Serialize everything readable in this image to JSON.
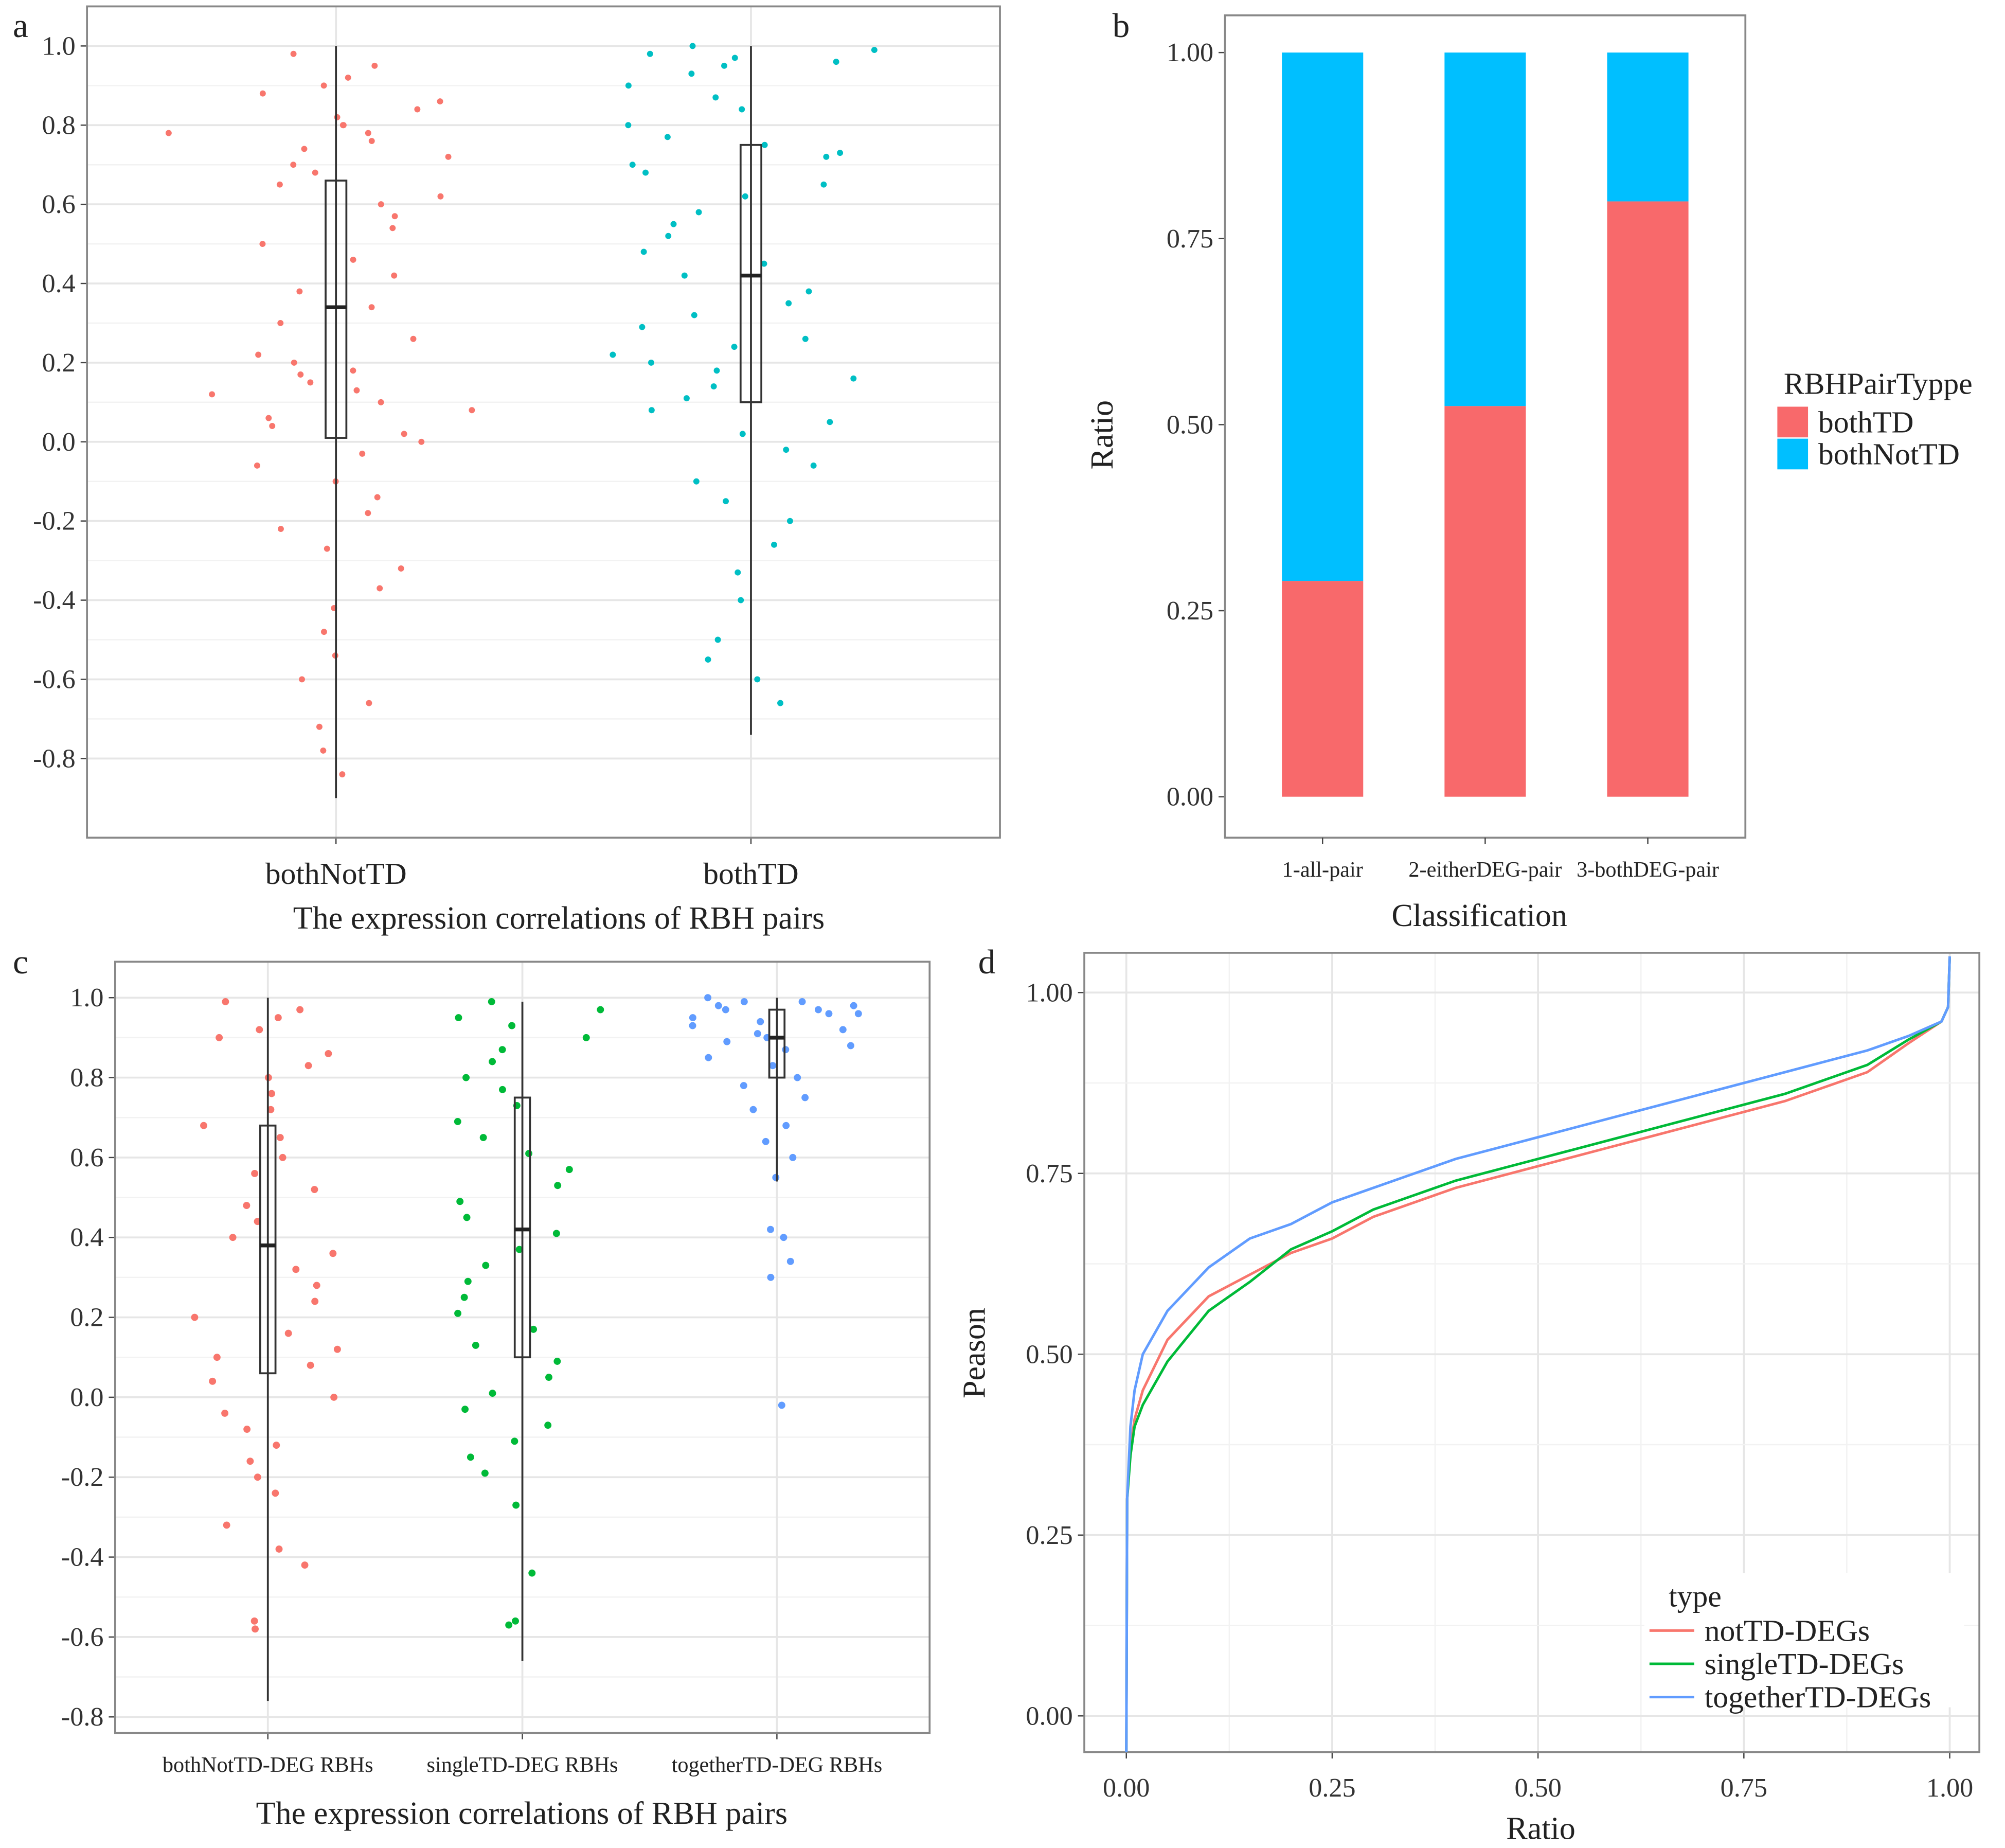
{
  "chart_data": [
    {
      "type": "swarm",
      "panel": "a",
      "xlabel": "The expression correlations of RBH pairs",
      "categories": [
        "bothNotTD",
        "bothTD"
      ],
      "colors": [
        "#F8766D",
        "#00BFC4"
      ],
      "ylim": [
        -1.0,
        1.1
      ],
      "yticks": [
        {
          "value": 1,
          "label": "1.0"
        },
        0.8,
        0.6,
        0.4,
        0.2,
        {
          "value": 0,
          "label": "0.0"
        },
        -0.2,
        -0.4,
        -0.6,
        -0.8
      ],
      "grid": true,
      "points": [
        [
          0.98,
          0.95,
          0.92,
          0.9,
          0.88,
          0.86,
          0.84,
          0.82,
          0.8,
          0.8,
          0.78,
          0.78,
          0.76,
          0.74,
          0.72,
          0.7,
          0.68,
          0.65,
          0.62,
          0.6,
          0.57,
          0.54,
          0.5,
          0.46,
          0.42,
          0.38,
          0.34,
          0.3,
          0.26,
          0.22,
          0.2,
          0.18,
          0.17,
          0.15,
          0.13,
          0.12,
          0.1,
          0.08,
          0.06,
          0.04,
          0.02,
          0.0,
          -0.03,
          -0.06,
          -0.1,
          -0.14,
          -0.18,
          -0.22,
          -0.27,
          -0.32,
          -0.37,
          -0.42,
          -0.48,
          -0.54,
          -0.6,
          -0.66,
          -0.72,
          -0.78,
          -0.84
        ],
        [
          1.0,
          0.99,
          0.98,
          0.97,
          0.96,
          0.95,
          0.93,
          0.9,
          0.87,
          0.84,
          0.8,
          0.77,
          0.75,
          0.73,
          0.72,
          0.7,
          0.68,
          0.65,
          0.62,
          0.58,
          0.55,
          0.52,
          0.48,
          0.45,
          0.42,
          0.38,
          0.35,
          0.32,
          0.29,
          0.26,
          0.24,
          0.22,
          0.2,
          0.18,
          0.16,
          0.14,
          0.11,
          0.08,
          0.05,
          0.02,
          -0.02,
          -0.06,
          -0.1,
          -0.15,
          -0.2,
          -0.26,
          -0.33,
          -0.4,
          -0.5,
          -0.55,
          -0.6,
          -0.66
        ]
      ],
      "boxes": [
        {
          "min": -0.9,
          "q1": 0.01,
          "median": 0.34,
          "q3": 0.66,
          "max": 1.0
        },
        {
          "min": -0.74,
          "q1": 0.1,
          "median": 0.42,
          "q3": 0.75,
          "max": 1.0
        }
      ]
    },
    {
      "type": "bar",
      "panel": "b",
      "xlabel": "Classification",
      "ylabel": "Ratio",
      "categories": [
        "1-all-pair",
        "2-eitherDEG-pair",
        "3-bothDEG-pair"
      ],
      "ylim": [
        -0.055,
        1.05
      ],
      "yticks": [
        {
          "value": 0,
          "label": "0.00"
        },
        {
          "value": 0.25,
          "label": "0.25"
        },
        {
          "value": 0.5,
          "label": "0.50"
        },
        {
          "value": 0.75,
          "label": "0.75"
        },
        {
          "value": 1,
          "label": "1.00"
        }
      ],
      "legend_title": "RBHPairTyppe",
      "series": [
        {
          "name": "bothTD",
          "color": "#F8696B",
          "values": [
            0.29,
            0.525,
            0.8
          ]
        },
        {
          "name": "bothNotTD",
          "color": "#00BFFF",
          "values": [
            0.71,
            0.475,
            0.2
          ]
        }
      ]
    },
    {
      "type": "swarm",
      "panel": "c",
      "xlabel": "The expression correlations of RBH pairs",
      "categories": [
        "bothNotTD-DEG RBHs",
        "singleTD-DEG RBHs",
        "togetherTD-DEG RBHs"
      ],
      "colors": [
        "#F8766D",
        "#00BA38",
        "#619CFF"
      ],
      "ylim": [
        -0.84,
        1.09
      ],
      "yticks": [
        {
          "value": 1,
          "label": "1.0"
        },
        0.8,
        0.6,
        0.4,
        0.2,
        {
          "value": 0,
          "label": "0.0"
        },
        -0.2,
        -0.4,
        -0.6,
        -0.8
      ],
      "grid": true,
      "points": [
        [
          0.99,
          0.97,
          0.95,
          0.92,
          0.9,
          0.86,
          0.83,
          0.8,
          0.76,
          0.72,
          0.68,
          0.65,
          0.6,
          0.56,
          0.52,
          0.48,
          0.44,
          0.4,
          0.36,
          0.32,
          0.28,
          0.24,
          0.2,
          0.16,
          0.12,
          0.1,
          0.08,
          0.04,
          0.0,
          -0.04,
          -0.08,
          -0.12,
          -0.16,
          -0.2,
          -0.24,
          -0.32,
          -0.38,
          -0.42,
          -0.56,
          -0.58
        ],
        [
          0.99,
          0.97,
          0.95,
          0.93,
          0.9,
          0.87,
          0.84,
          0.8,
          0.77,
          0.73,
          0.69,
          0.65,
          0.61,
          0.57,
          0.53,
          0.49,
          0.45,
          0.41,
          0.37,
          0.33,
          0.29,
          0.25,
          0.21,
          0.17,
          0.13,
          0.09,
          0.05,
          0.01,
          -0.03,
          -0.07,
          -0.11,
          -0.15,
          -0.19,
          -0.27,
          -0.44,
          -0.56,
          -0.57
        ],
        [
          1.0,
          0.99,
          0.99,
          0.98,
          0.98,
          0.97,
          0.97,
          0.96,
          0.96,
          0.95,
          0.94,
          0.93,
          0.92,
          0.91,
          0.9,
          0.89,
          0.88,
          0.87,
          0.85,
          0.83,
          0.8,
          0.78,
          0.75,
          0.72,
          0.68,
          0.64,
          0.6,
          0.55,
          0.42,
          0.4,
          0.34,
          0.3,
          -0.02
        ]
      ],
      "boxes": [
        {
          "min": -0.76,
          "q1": 0.06,
          "median": 0.38,
          "q3": 0.68,
          "max": 1.0
        },
        {
          "min": -0.66,
          "q1": 0.1,
          "median": 0.42,
          "q3": 0.75,
          "max": 0.99
        },
        {
          "min": 0.54,
          "q1": 0.8,
          "median": 0.9,
          "q3": 0.97,
          "max": 1.0
        }
      ]
    },
    {
      "type": "line",
      "panel": "d",
      "xlabel": "Ratio",
      "ylabel": "Peason",
      "x": [
        0,
        0.001,
        0.005,
        0.01,
        0.02,
        0.05,
        0.1,
        0.15,
        0.2,
        0.25,
        0.3,
        0.4,
        0.5,
        0.6,
        0.7,
        0.8,
        0.9,
        0.95,
        0.99,
        0.998,
        1.0
      ],
      "xlim": [
        -0.051,
        1.036
      ],
      "ylim": [
        -0.05,
        1.055
      ],
      "xticks": [
        {
          "value": 0,
          "label": "0.00"
        },
        {
          "value": 0.25,
          "label": "0.25"
        },
        {
          "value": 0.5,
          "label": "0.50"
        },
        {
          "value": 0.75,
          "label": "0.75"
        },
        {
          "value": 1,
          "label": "1.00"
        }
      ],
      "yticks": [
        {
          "value": 0,
          "label": "0.00"
        },
        {
          "value": 0.25,
          "label": "0.25"
        },
        {
          "value": 0.5,
          "label": "0.50"
        },
        {
          "value": 0.75,
          "label": "0.75"
        },
        {
          "value": 1,
          "label": "1.00"
        }
      ],
      "grid": true,
      "legend_title": "type",
      "series": [
        {
          "name": "notTD-DEGs",
          "color": "#F8766D",
          "values": [
            -0.05,
            0.3,
            0.37,
            0.41,
            0.45,
            0.52,
            0.58,
            0.61,
            0.64,
            0.66,
            0.69,
            0.73,
            0.76,
            0.79,
            0.82,
            0.85,
            0.89,
            0.93,
            0.96,
            0.98,
            1.05
          ]
        },
        {
          "name": "singleTD-DEGs",
          "color": "#00BA38",
          "values": [
            -0.05,
            0.3,
            0.36,
            0.4,
            0.43,
            0.49,
            0.56,
            0.6,
            0.645,
            0.67,
            0.7,
            0.74,
            0.77,
            0.8,
            0.83,
            0.86,
            0.9,
            0.935,
            0.96,
            0.98,
            1.05
          ]
        },
        {
          "name": "togetherTD-DEGs",
          "color": "#619CFF",
          "values": [
            -0.05,
            0.3,
            0.4,
            0.45,
            0.5,
            0.56,
            0.62,
            0.66,
            0.68,
            0.71,
            0.73,
            0.77,
            0.8,
            0.83,
            0.86,
            0.89,
            0.92,
            0.94,
            0.96,
            0.98,
            1.05
          ]
        }
      ]
    }
  ]
}
